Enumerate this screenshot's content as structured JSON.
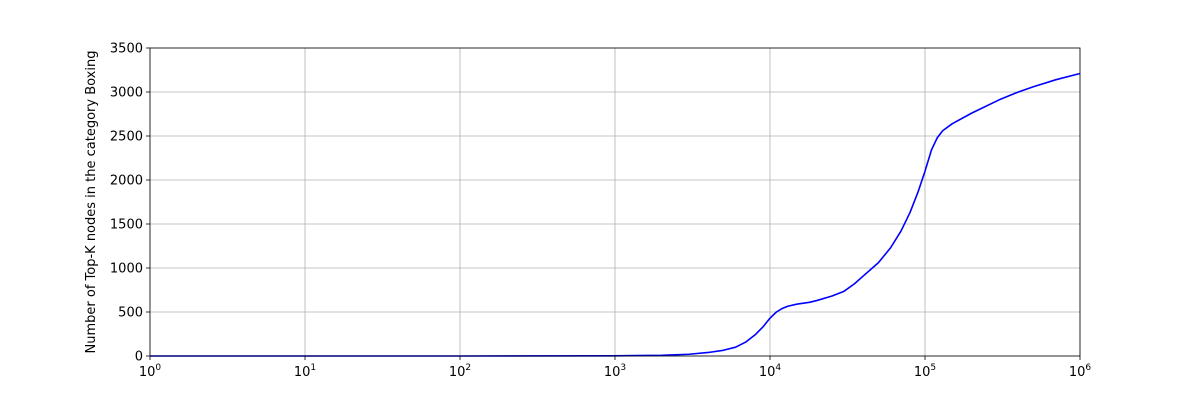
{
  "chart_data": {
    "type": "line",
    "title": "",
    "xlabel": "",
    "ylabel": "Number of Top-K nodes in the category Boxing",
    "xscale": "log",
    "xlim": [
      1,
      1000000
    ],
    "ylim": [
      0,
      3500
    ],
    "grid": true,
    "x_ticks": [
      {
        "base": "10",
        "exp": "0",
        "value": 1
      },
      {
        "base": "10",
        "exp": "1",
        "value": 10
      },
      {
        "base": "10",
        "exp": "2",
        "value": 100
      },
      {
        "base": "10",
        "exp": "3",
        "value": 1000
      },
      {
        "base": "10",
        "exp": "4",
        "value": 10000
      },
      {
        "base": "10",
        "exp": "5",
        "value": 100000
      },
      {
        "base": "10",
        "exp": "6",
        "value": 1000000
      }
    ],
    "y_ticks": [
      {
        "label": "0",
        "value": 0
      },
      {
        "label": "500",
        "value": 500
      },
      {
        "label": "1000",
        "value": 1000
      },
      {
        "label": "1500",
        "value": 1500
      },
      {
        "label": "2000",
        "value": 2000
      },
      {
        "label": "2500",
        "value": 2500
      },
      {
        "label": "3000",
        "value": 3000
      },
      {
        "label": "3500",
        "value": 3500
      }
    ],
    "series": [
      {
        "color": "#0000ff",
        "x": [
          1,
          10,
          100,
          1000,
          2000,
          3000,
          4000,
          5000,
          6000,
          7000,
          8000,
          9000,
          10000,
          11000,
          12000,
          13000,
          15000,
          18000,
          20000,
          25000,
          30000,
          35000,
          40000,
          50000,
          60000,
          70000,
          80000,
          90000,
          100000,
          110000,
          120000,
          130000,
          150000,
          200000,
          300000,
          400000,
          500000,
          700000,
          1000000
        ],
        "y": [
          0,
          0,
          0,
          2,
          8,
          20,
          40,
          65,
          100,
          160,
          240,
          330,
          430,
          500,
          540,
          565,
          590,
          610,
          630,
          680,
          735,
          820,
          910,
          1060,
          1230,
          1420,
          1630,
          1860,
          2100,
          2340,
          2480,
          2560,
          2640,
          2760,
          2910,
          3000,
          3060,
          3140,
          3210
        ]
      }
    ]
  }
}
